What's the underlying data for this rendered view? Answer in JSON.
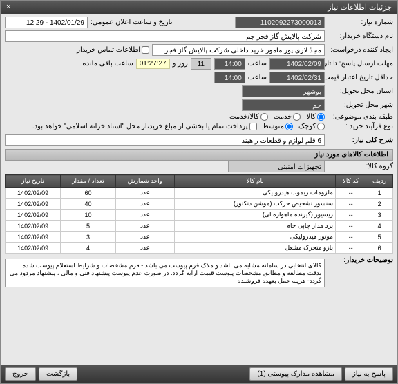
{
  "title": "جزئیات اطلاعات نیاز",
  "closeIcon": "×",
  "f": {
    "needNo_l": "شماره نیاز:",
    "needNo": "1102092273000013",
    "announceDate_l": "تاریخ و ساعت اعلان عمومی:",
    "announceDate": "1402/01/29 - 12:29",
    "buyerOrg_l": "نام دستگاه خریدار:",
    "buyerOrg": "شرکت پالایش گاز فجر جم",
    "reqBy_l": "ایجاد کننده درخواست:",
    "reqBy": "مجدٰ لاری پور مامور خرید داخلی شرکت پالایش گاز فجر جم",
    "contactChk": "اطلاعات تماس خریدار",
    "deadline_l": "مهلت ارسال پاسخ: تا تاریخ:",
    "deadlineDate": "1402/02/09",
    "time_l": "ساعت",
    "deadlineTime": "14:00",
    "day_l": "روز و",
    "days": "11",
    "remain_l": "ساعت باقی مانده",
    "timer": "01:27:27",
    "validity_l": "حداقل تاریخ اعتبار قیمت: تا تاریخ:",
    "validDate": "1402/02/31",
    "validTime": "14:00",
    "province_l": "استان محل تحویل:",
    "province": "بوشهر",
    "city_l": "شهر محل تحویل:",
    "city": "جم",
    "category_l": "طبقه بندی موضوعی:",
    "cat_opts": [
      "کالا",
      "خدمت",
      "کالا/خدمت"
    ],
    "process_l": "نوع فرآیند خرید :",
    "proc_opts": [
      "کوچک",
      "متوسط",
      "پرداخت تمام یا بخشی از مبلغ خرید،از محل \"اسناد خزانه اسلامی\" خواهد بود."
    ],
    "title_l": "شرح کلی نیاز:",
    "titleTxt": "6 قلم لوازم و قطعات راهبند"
  },
  "sec1": "اطلاعات کالاهای مورد نیاز",
  "group_l": "گروه کالا:",
  "group": "تجهیزات امنیتی",
  "cols": [
    "ردیف",
    "کد کالا",
    "نام کالا",
    "واحد شمارش",
    "تعداد / مقدار",
    "تاریخ نیاز"
  ],
  "rows": [
    {
      "n": "1",
      "code": "--",
      "name": "ملزومات ریموت هیدرولیکی",
      "unit": "عدد",
      "qty": "60",
      "date": "1402/02/09"
    },
    {
      "n": "2",
      "code": "--",
      "name": "سنسور تشخیص حرکت (موشن دتکتور)",
      "unit": "عدد",
      "qty": "40",
      "date": "1402/02/09"
    },
    {
      "n": "3",
      "code": "--",
      "name": "ریسیور (گیرنده ماهواره ای)",
      "unit": "عدد",
      "qty": "10",
      "date": "1402/02/09"
    },
    {
      "n": "4",
      "code": "--",
      "name": "برد مدار چاپی خام",
      "unit": "عدد",
      "qty": "5",
      "date": "1402/02/09"
    },
    {
      "n": "5",
      "code": "--",
      "name": "موتور هیدرولیکی",
      "unit": "عدد",
      "qty": "3",
      "date": "1402/02/09"
    },
    {
      "n": "6",
      "code": "--",
      "name": "بازو متحرک مشعل",
      "unit": "عدد",
      "qty": "4",
      "date": "1402/02/09"
    }
  ],
  "desc_l": "توضیحات خریدار:",
  "desc": "کالای انتخابی  در سامانه مشابه می باشد و ملاک فرم پیوست می باشد  -  فرم مشخصات و شرایط استعلام  پیوست شده بدقت مطالعه و مطابق مشخصات پیوست قیمت ارایه گردد. در صورت عدم پیوست پیشنهاد فنی و مالی ، پیشنهاد مردود می گردد- هزینه حمل بعهده فروشنده",
  "btns": [
    "پاسخ به نیاز",
    "مشاهده مدارک پیوستی (1)",
    "بازگشت",
    "خروج"
  ]
}
